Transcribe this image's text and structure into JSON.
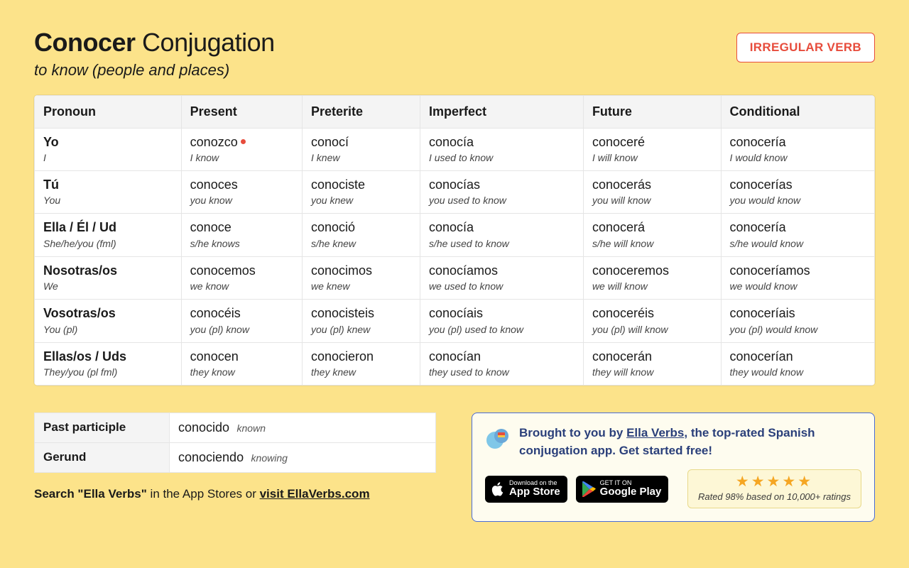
{
  "header": {
    "verb": "Conocer",
    "title_suffix": "Conjugation",
    "subtitle": "to know (people and places)",
    "badge": "IRREGULAR VERB"
  },
  "columns": [
    "Pronoun",
    "Present",
    "Preterite",
    "Imperfect",
    "Future",
    "Conditional"
  ],
  "rows": [
    {
      "pronoun_es": "Yo",
      "pronoun_en": "I",
      "present_es": "conozco",
      "present_en": "I know",
      "present_irregular": true,
      "preterite_es": "conocí",
      "preterite_en": "I knew",
      "imperfect_es": "conocía",
      "imperfect_en": "I used to know",
      "future_es": "conoceré",
      "future_en": "I will know",
      "conditional_es": "conocería",
      "conditional_en": "I would know"
    },
    {
      "pronoun_es": "Tú",
      "pronoun_en": "You",
      "present_es": "conoces",
      "present_en": "you know",
      "preterite_es": "conociste",
      "preterite_en": "you knew",
      "imperfect_es": "conocías",
      "imperfect_en": "you used to know",
      "future_es": "conocerás",
      "future_en": "you will know",
      "conditional_es": "conocerías",
      "conditional_en": "you would know"
    },
    {
      "pronoun_es": "Ella / Él / Ud",
      "pronoun_en": "She/he/you (fml)",
      "present_es": "conoce",
      "present_en": "s/he knows",
      "preterite_es": "conoció",
      "preterite_en": "s/he knew",
      "imperfect_es": "conocía",
      "imperfect_en": "s/he used to know",
      "future_es": "conocerá",
      "future_en": "s/he will know",
      "conditional_es": "conocería",
      "conditional_en": "s/he would know"
    },
    {
      "pronoun_es": "Nosotras/os",
      "pronoun_en": "We",
      "present_es": "conocemos",
      "present_en": "we know",
      "preterite_es": "conocimos",
      "preterite_en": "we knew",
      "imperfect_es": "conocíamos",
      "imperfect_en": "we used to know",
      "future_es": "conoceremos",
      "future_en": "we will know",
      "conditional_es": "conoceríamos",
      "conditional_en": "we would know"
    },
    {
      "pronoun_es": "Vosotras/os",
      "pronoun_en": "You (pl)",
      "present_es": "conocéis",
      "present_en": "you (pl) know",
      "preterite_es": "conocisteis",
      "preterite_en": "you (pl) knew",
      "imperfect_es": "conocíais",
      "imperfect_en": "you (pl) used to know",
      "future_es": "conoceréis",
      "future_en": "you (pl) will know",
      "conditional_es": "conoceríais",
      "conditional_en": "you (pl) would know"
    },
    {
      "pronoun_es": "Ellas/os / Uds",
      "pronoun_en": "They/you (pl fml)",
      "present_es": "conocen",
      "present_en": "they know",
      "preterite_es": "conocieron",
      "preterite_en": "they knew",
      "imperfect_es": "conocían",
      "imperfect_en": "they used to know",
      "future_es": "conocerán",
      "future_en": "they will know",
      "conditional_es": "conocerían",
      "conditional_en": "they would know"
    }
  ],
  "participles": {
    "past_label": "Past participle",
    "past_es": "conocido",
    "past_en": "known",
    "gerund_label": "Gerund",
    "gerund_es": "conociendo",
    "gerund_en": "knowing"
  },
  "search_line": {
    "prefix": "Search \"Ella Verbs\"",
    "mid": " in the App Stores or ",
    "link": "visit EllaVerbs.com"
  },
  "promo": {
    "text_prefix": "Brought to you by ",
    "brand": "Ella Verbs",
    "text_suffix": ", the top-rated Spanish conjugation app. Get started free!",
    "appstore_small": "Download on the",
    "appstore_big": "App Store",
    "play_small": "GET IT ON",
    "play_big": "Google Play",
    "stars": "★★★★★",
    "rating": "Rated 98% based on 10,000+ ratings"
  },
  "colors": {
    "page_bg": "#fce38a",
    "badge_border": "#e74c3c",
    "promo_border": "#4a6bd6",
    "promo_bg": "#fefcef",
    "promo_text": "#2a3f7a",
    "rating_bg": "#fdf7d6",
    "star_color": "#f5a623",
    "table_header_bg": "#f4f4f4",
    "cell_border": "#e5e5e5"
  }
}
